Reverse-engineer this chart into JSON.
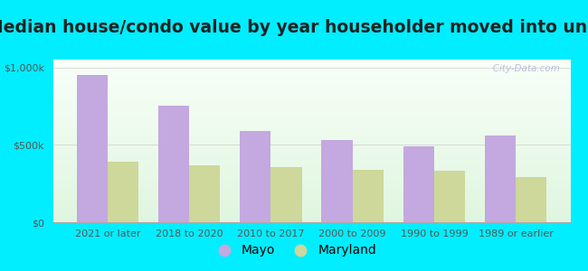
{
  "title": "Median house/condo value by year householder moved into unit",
  "categories": [
    "2021 or later",
    "2018 to 2020",
    "2010 to 2017",
    "2000 to 2009",
    "1990 to 1999",
    "1989 or earlier"
  ],
  "mayo_values": [
    950000,
    750000,
    590000,
    530000,
    490000,
    560000
  ],
  "maryland_values": [
    390000,
    365000,
    355000,
    340000,
    335000,
    290000
  ],
  "mayo_color": "#c4a8e0",
  "maryland_color": "#cdd89a",
  "background_outer": "#00eeff",
  "background_inner_top": "#f8fff8",
  "background_inner_bottom": "#dff5df",
  "ylabel_ticks": [
    "$0",
    "$500k",
    "$1,000k"
  ],
  "ytick_values": [
    0,
    500000,
    1000000
  ],
  "ylim": [
    0,
    1050000
  ],
  "watermark": "   City-Data.com",
  "legend_labels": [
    "Mayo",
    "Maryland"
  ],
  "bar_width": 0.38,
  "title_fontsize": 13.5,
  "tick_fontsize": 8,
  "legend_fontsize": 10
}
